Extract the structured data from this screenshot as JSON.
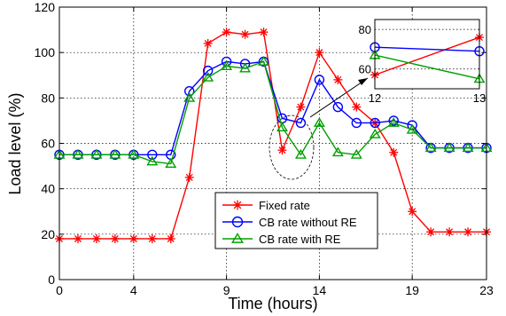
{
  "chart_data": {
    "type": "line",
    "xlabel": "Time (hours)",
    "ylabel": "Load level (%)",
    "xlim": [
      0,
      23
    ],
    "ylim": [
      0,
      120
    ],
    "xticks": [
      0,
      4,
      9,
      14,
      19,
      23
    ],
    "yticks": [
      0,
      20,
      40,
      60,
      80,
      100,
      120
    ],
    "grid": true,
    "legend_position": "bottom-center",
    "x": [
      0,
      1,
      2,
      3,
      4,
      5,
      6,
      7,
      8,
      9,
      10,
      11,
      12,
      13,
      14,
      15,
      16,
      17,
      18,
      19,
      20,
      21,
      22,
      23
    ],
    "series": [
      {
        "name": "Fixed rate",
        "color": "#ff0000",
        "marker": "asterisk",
        "values": [
          18,
          18,
          18,
          18,
          18,
          18,
          18,
          45,
          104,
          109,
          108,
          109,
          57,
          76,
          100,
          88,
          76,
          69,
          56,
          30,
          21,
          21,
          21,
          21
        ]
      },
      {
        "name": "CB rate without RE",
        "color": "#0000ff",
        "marker": "circle",
        "values": [
          55,
          55,
          55,
          55,
          55,
          55,
          55,
          83,
          92,
          96,
          95,
          96,
          71,
          69,
          88,
          76,
          69,
          69,
          70,
          68,
          58,
          58,
          58,
          58
        ]
      },
      {
        "name": "CB rate with RE",
        "color": "#00a000",
        "marker": "triangle",
        "values": [
          55,
          55,
          55,
          55,
          55,
          52,
          51,
          80,
          89,
          94,
          93,
          96,
          67,
          55,
          69,
          56,
          55,
          64,
          69,
          66,
          58,
          58,
          58,
          58
        ]
      }
    ],
    "inset": {
      "xlim": [
        12,
        13
      ],
      "ylim": [
        50,
        85
      ],
      "xticks": [
        12,
        13
      ],
      "yticks": [
        60,
        80
      ],
      "series_values": [
        [
          57,
          76
        ],
        [
          71,
          69
        ],
        [
          67,
          55
        ]
      ]
    }
  }
}
